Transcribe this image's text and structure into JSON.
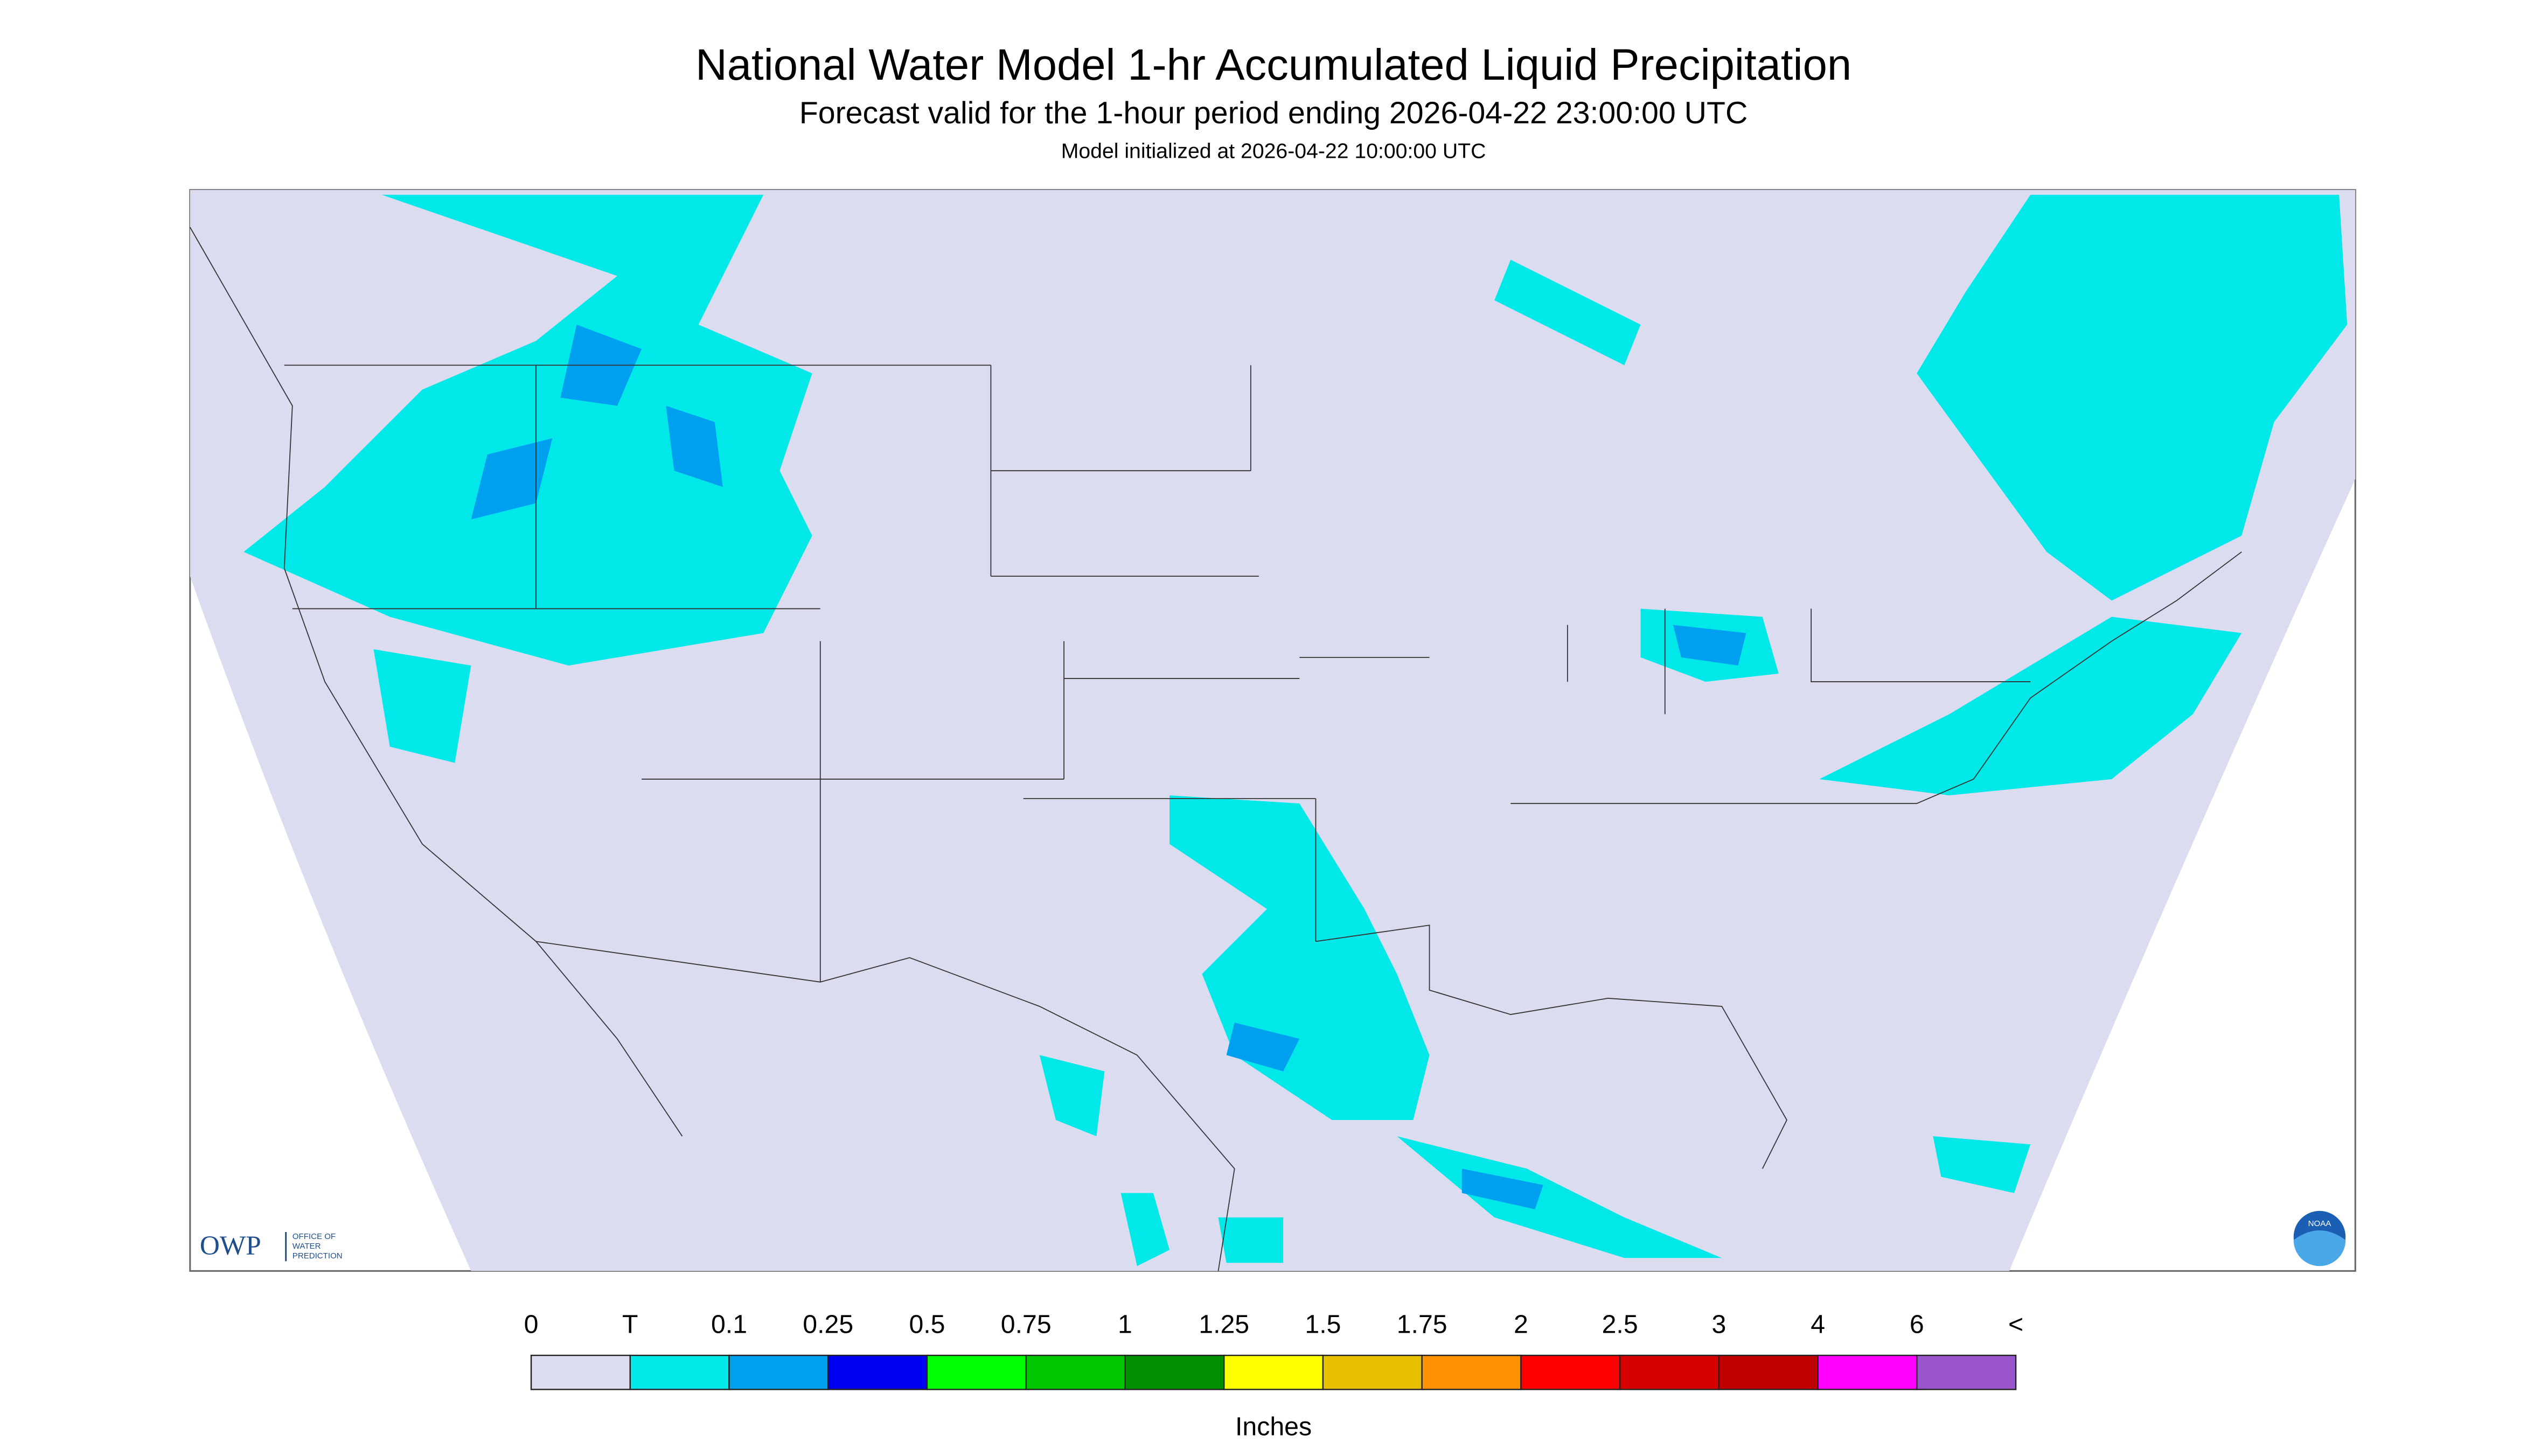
{
  "header": {
    "title": "National Water Model 1-hr Accumulated Liquid Precipitation",
    "subtitle": "Forecast valid for the 1-hour period ending 2026-04-22 23:00:00 UTC",
    "note": "Model initialized at 2026-04-22 10:00:00 UTC"
  },
  "logos": {
    "owp": "OWP",
    "owp_name": [
      "OFFICE OF",
      "WATER",
      "PREDICTION"
    ],
    "noaa": "NOAA"
  },
  "legend": {
    "labels": [
      "0",
      "T",
      "0.1",
      "0.25",
      "0.5",
      "0.75",
      "1",
      "1.25",
      "1.5",
      "1.75",
      "2",
      "2.5",
      "3",
      "4",
      "6",
      "<"
    ],
    "colors": [
      "#dcdcf0",
      "#00e8e8",
      "#00a0f0",
      "#0000f0",
      "#00ff00",
      "#00c800",
      "#009000",
      "#ffff00",
      "#e7c000",
      "#ff9000",
      "#ff0000",
      "#d60000",
      "#c00000",
      "#ff00ff",
      "#9955c9"
    ],
    "unit": "Inches"
  }
}
